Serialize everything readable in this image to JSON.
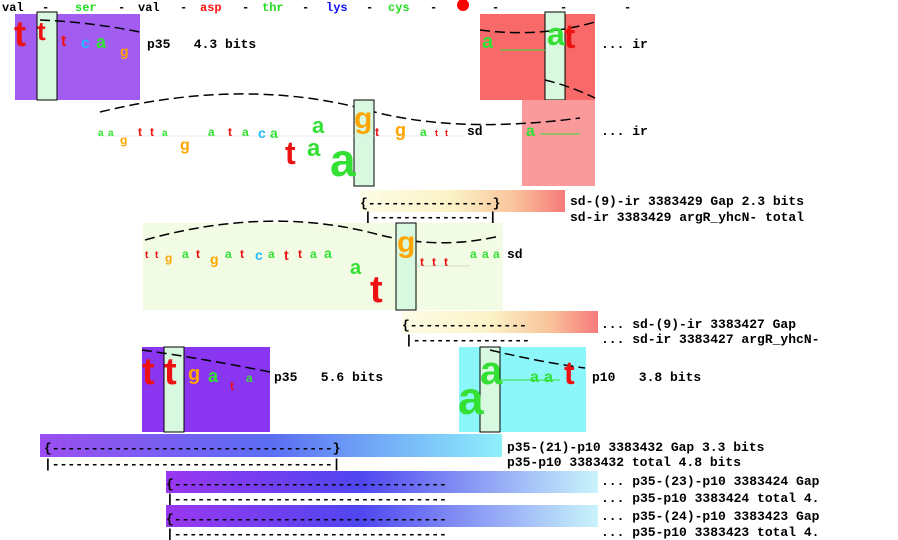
{
  "aa_header": [
    {
      "text": "val",
      "color": "#000000"
    },
    {
      "text": "-",
      "color": "#000000"
    },
    {
      "text": "ser",
      "color": "#22dd22"
    },
    {
      "text": "-",
      "color": "#000000"
    },
    {
      "text": "val",
      "color": "#000000"
    },
    {
      "text": "-",
      "color": "#000000"
    },
    {
      "text": "asp",
      "color": "#ff1111"
    },
    {
      "text": "-",
      "color": "#000000"
    },
    {
      "text": "thr",
      "color": "#22dd22"
    },
    {
      "text": "-",
      "color": "#000000"
    },
    {
      "text": "lys",
      "color": "#1111ff"
    },
    {
      "text": "-",
      "color": "#000000"
    },
    {
      "text": "cys",
      "color": "#22dd22"
    },
    {
      "text": "-",
      "color": "#000000"
    },
    {
      "text": "-",
      "color": "#000000"
    },
    {
      "text": "-",
      "color": "#000000"
    },
    {
      "text": "-",
      "color": "#000000"
    }
  ],
  "labels": {
    "site_p35_top": "p35   4.3 bits",
    "site_ir_top": "... ir",
    "site_sd_1": "sd",
    "site_ir_2": "... ir",
    "gap_sd_ir_1": "sd-(9)-ir 3383429 Gap 2.3 bits",
    "total_sd_ir_1": "sd-ir 3383429 argR_yhcN- total",
    "site_sd_2": "sd",
    "gap_sd_ir_2": "... sd-(9)-ir 3383427 Gap",
    "total_sd_ir_2": "... sd-ir 3383427 argR_yhcN-",
    "site_p35_mid": "p35   5.6 bits",
    "site_p10_mid": "p10   3.8 bits",
    "gap_p35_p10_1": "p35-(21)-p10 3383432 Gap 3.3 bits",
    "total_p35_p10_1": "p35-p10 3383432 total 4.8 bits",
    "gap_p35_p10_2": "... p35-(23)-p10 3383424 Gap",
    "total_p35_p10_2": "... p35-p10 3383424 total 4.",
    "gap_p35_p10_3": "... p35-(24)-p10 3383423 Gap",
    "total_p35_p10_3": "... p35-p10 3383423 total 4."
  },
  "colors": {
    "p35": "#a35cf0",
    "p10": "#8cf7fb",
    "ir": "#f86a6a",
    "ir_light": "#fb9a9a",
    "sd": "#f2fbe4",
    "highlight": "#d8f8e0",
    "base_a": "#33e033",
    "base_c": "#22bbff",
    "base_g": "#ffa500",
    "base_t": "#ee1111",
    "stop_dot": "#ff0000"
  }
}
